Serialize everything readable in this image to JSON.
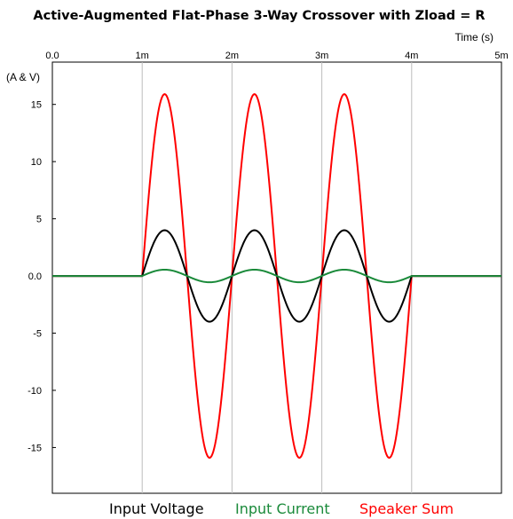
{
  "chart_data": {
    "type": "line",
    "title": "Active-Augmented Flat-Phase 3-Way Crossover with Zload = R",
    "xlabel": "Time  (s)",
    "ylabel": "(A & V)",
    "x_tick_labels": [
      "0.0",
      "1m",
      "2m",
      "3m",
      "4m",
      "5m"
    ],
    "x_ticks": [
      0,
      0.001,
      0.002,
      0.003,
      0.004,
      0.005
    ],
    "y_tick_labels": [
      "15",
      "10",
      "5",
      "0.0",
      "-5",
      "-10",
      "-15"
    ],
    "y_ticks": [
      15,
      10,
      5,
      0,
      -5,
      -10,
      -15
    ],
    "xlim": [
      0,
      0.005
    ],
    "ylim": [
      -19,
      18.7
    ],
    "grid": "vertical",
    "legend_position": "bottom",
    "series": [
      {
        "name": "Input Voltage",
        "color": "#000000",
        "x": [
          0,
          0.001,
          0.00125,
          0.0015,
          0.00175,
          0.002,
          0.00225,
          0.0025,
          0.00275,
          0.003,
          0.00325,
          0.0035,
          0.00375,
          0.004,
          0.005
        ],
        "y": [
          0,
          0,
          4,
          0,
          -4,
          0,
          4,
          0,
          -4,
          0,
          4,
          0,
          -4,
          0,
          0
        ]
      },
      {
        "name": "Input Current",
        "color": "#1a8a3a",
        "x": [
          0,
          0.001,
          0.00125,
          0.0015,
          0.00175,
          0.002,
          0.00225,
          0.0025,
          0.00275,
          0.003,
          0.00325,
          0.0035,
          0.00375,
          0.004,
          0.005
        ],
        "y": [
          0,
          0,
          0.55,
          0,
          -0.55,
          0,
          0.55,
          0,
          -0.55,
          0,
          0.55,
          0,
          -0.55,
          0,
          0
        ]
      },
      {
        "name": "Speaker Sum",
        "color": "#ff0000",
        "x": [
          0,
          0.001,
          0.00125,
          0.0015,
          0.00175,
          0.002,
          0.00225,
          0.0025,
          0.00275,
          0.003,
          0.00325,
          0.0035,
          0.00375,
          0.004,
          0.005
        ],
        "y": [
          0,
          0,
          15.9,
          0,
          -15.9,
          0,
          15.9,
          0,
          -15.9,
          0,
          15.9,
          0,
          -15.9,
          0,
          0
        ]
      }
    ]
  }
}
